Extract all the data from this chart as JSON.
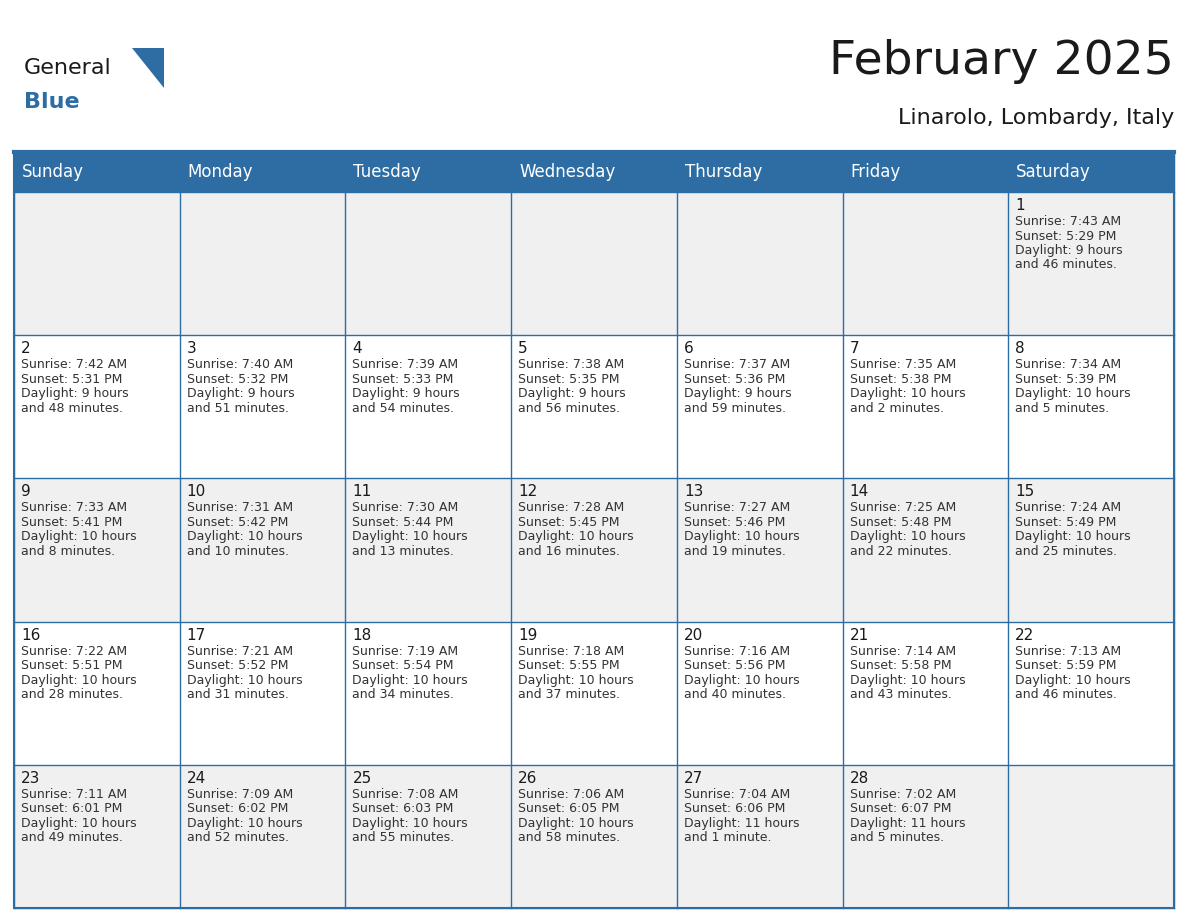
{
  "title": "February 2025",
  "subtitle": "Linarolo, Lombardy, Italy",
  "header_bg": "#2E6DA4",
  "header_text_color": "#FFFFFF",
  "row_colors": [
    "#F0F0F0",
    "#FFFFFF",
    "#F0F0F0",
    "#FFFFFF",
    "#F0F0F0"
  ],
  "border_color": "#2E6DA4",
  "day_names": [
    "Sunday",
    "Monday",
    "Tuesday",
    "Wednesday",
    "Thursday",
    "Friday",
    "Saturday"
  ],
  "days": [
    {
      "day": 1,
      "col": 6,
      "row": 0,
      "sunrise": "7:43 AM",
      "sunset": "5:29 PM",
      "daylight": "9 hours and 46 minutes."
    },
    {
      "day": 2,
      "col": 0,
      "row": 1,
      "sunrise": "7:42 AM",
      "sunset": "5:31 PM",
      "daylight": "9 hours and 48 minutes."
    },
    {
      "day": 3,
      "col": 1,
      "row": 1,
      "sunrise": "7:40 AM",
      "sunset": "5:32 PM",
      "daylight": "9 hours and 51 minutes."
    },
    {
      "day": 4,
      "col": 2,
      "row": 1,
      "sunrise": "7:39 AM",
      "sunset": "5:33 PM",
      "daylight": "9 hours and 54 minutes."
    },
    {
      "day": 5,
      "col": 3,
      "row": 1,
      "sunrise": "7:38 AM",
      "sunset": "5:35 PM",
      "daylight": "9 hours and 56 minutes."
    },
    {
      "day": 6,
      "col": 4,
      "row": 1,
      "sunrise": "7:37 AM",
      "sunset": "5:36 PM",
      "daylight": "9 hours and 59 minutes."
    },
    {
      "day": 7,
      "col": 5,
      "row": 1,
      "sunrise": "7:35 AM",
      "sunset": "5:38 PM",
      "daylight": "10 hours and 2 minutes."
    },
    {
      "day": 8,
      "col": 6,
      "row": 1,
      "sunrise": "7:34 AM",
      "sunset": "5:39 PM",
      "daylight": "10 hours and 5 minutes."
    },
    {
      "day": 9,
      "col": 0,
      "row": 2,
      "sunrise": "7:33 AM",
      "sunset": "5:41 PM",
      "daylight": "10 hours and 8 minutes."
    },
    {
      "day": 10,
      "col": 1,
      "row": 2,
      "sunrise": "7:31 AM",
      "sunset": "5:42 PM",
      "daylight": "10 hours and 10 minutes."
    },
    {
      "day": 11,
      "col": 2,
      "row": 2,
      "sunrise": "7:30 AM",
      "sunset": "5:44 PM",
      "daylight": "10 hours and 13 minutes."
    },
    {
      "day": 12,
      "col": 3,
      "row": 2,
      "sunrise": "7:28 AM",
      "sunset": "5:45 PM",
      "daylight": "10 hours and 16 minutes."
    },
    {
      "day": 13,
      "col": 4,
      "row": 2,
      "sunrise": "7:27 AM",
      "sunset": "5:46 PM",
      "daylight": "10 hours and 19 minutes."
    },
    {
      "day": 14,
      "col": 5,
      "row": 2,
      "sunrise": "7:25 AM",
      "sunset": "5:48 PM",
      "daylight": "10 hours and 22 minutes."
    },
    {
      "day": 15,
      "col": 6,
      "row": 2,
      "sunrise": "7:24 AM",
      "sunset": "5:49 PM",
      "daylight": "10 hours and 25 minutes."
    },
    {
      "day": 16,
      "col": 0,
      "row": 3,
      "sunrise": "7:22 AM",
      "sunset": "5:51 PM",
      "daylight": "10 hours and 28 minutes."
    },
    {
      "day": 17,
      "col": 1,
      "row": 3,
      "sunrise": "7:21 AM",
      "sunset": "5:52 PM",
      "daylight": "10 hours and 31 minutes."
    },
    {
      "day": 18,
      "col": 2,
      "row": 3,
      "sunrise": "7:19 AM",
      "sunset": "5:54 PM",
      "daylight": "10 hours and 34 minutes."
    },
    {
      "day": 19,
      "col": 3,
      "row": 3,
      "sunrise": "7:18 AM",
      "sunset": "5:55 PM",
      "daylight": "10 hours and 37 minutes."
    },
    {
      "day": 20,
      "col": 4,
      "row": 3,
      "sunrise": "7:16 AM",
      "sunset": "5:56 PM",
      "daylight": "10 hours and 40 minutes."
    },
    {
      "day": 21,
      "col": 5,
      "row": 3,
      "sunrise": "7:14 AM",
      "sunset": "5:58 PM",
      "daylight": "10 hours and 43 minutes."
    },
    {
      "day": 22,
      "col": 6,
      "row": 3,
      "sunrise": "7:13 AM",
      "sunset": "5:59 PM",
      "daylight": "10 hours and 46 minutes."
    },
    {
      "day": 23,
      "col": 0,
      "row": 4,
      "sunrise": "7:11 AM",
      "sunset": "6:01 PM",
      "daylight": "10 hours and 49 minutes."
    },
    {
      "day": 24,
      "col": 1,
      "row": 4,
      "sunrise": "7:09 AM",
      "sunset": "6:02 PM",
      "daylight": "10 hours and 52 minutes."
    },
    {
      "day": 25,
      "col": 2,
      "row": 4,
      "sunrise": "7:08 AM",
      "sunset": "6:03 PM",
      "daylight": "10 hours and 55 minutes."
    },
    {
      "day": 26,
      "col": 3,
      "row": 4,
      "sunrise": "7:06 AM",
      "sunset": "6:05 PM",
      "daylight": "10 hours and 58 minutes."
    },
    {
      "day": 27,
      "col": 4,
      "row": 4,
      "sunrise": "7:04 AM",
      "sunset": "6:06 PM",
      "daylight": "11 hours and 1 minute."
    },
    {
      "day": 28,
      "col": 5,
      "row": 4,
      "sunrise": "7:02 AM",
      "sunset": "6:07 PM",
      "daylight": "11 hours and 5 minutes."
    }
  ],
  "num_rows": 5,
  "num_cols": 7,
  "logo_text1": "General",
  "logo_text2": "Blue",
  "logo_color1": "#1a1a1a",
  "logo_color2": "#2E6DA4",
  "logo_triangle_color": "#2E6DA4",
  "title_fontsize": 34,
  "subtitle_fontsize": 16,
  "dayname_fontsize": 12,
  "daynum_fontsize": 11,
  "cell_fontsize": 9
}
